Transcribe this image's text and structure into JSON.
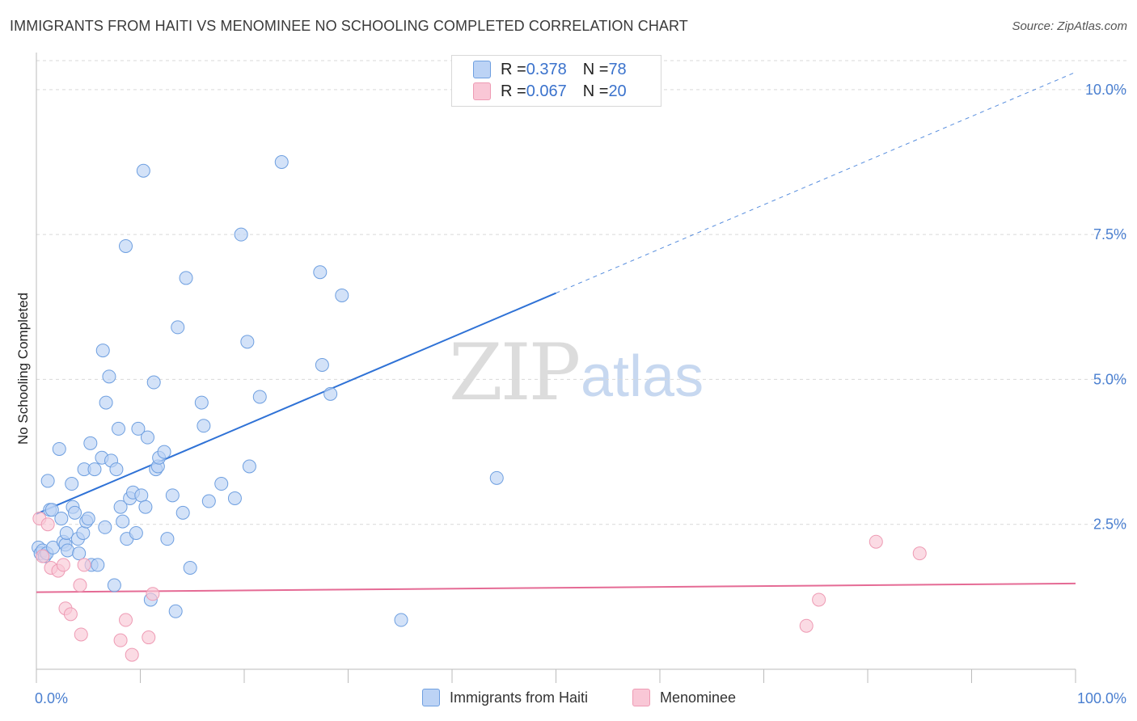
{
  "title": "IMMIGRANTS FROM HAITI VS MENOMINEE NO SCHOOLING COMPLETED CORRELATION CHART",
  "source": "Source: ZipAtlas.com",
  "watermark": {
    "zip": "ZIP",
    "atlas": "atlas"
  },
  "colors": {
    "blue_fill": "#bcd3f5",
    "blue_stroke": "#6e9fe0",
    "blue_line": "#2f72d6",
    "pink_fill": "#f9c7d6",
    "pink_stroke": "#ee9bb4",
    "pink_line": "#e56b95",
    "axis_text": "#4a7fd0",
    "grid": "#d9d9d9"
  },
  "legend": {
    "rows": [
      {
        "r_label": "R = ",
        "r_value": "0.378",
        "n_label": "N = ",
        "n_value": "78"
      },
      {
        "r_label": "R = ",
        "r_value": "0.067",
        "n_label": "N = ",
        "n_value": "20"
      }
    ]
  },
  "bottom_legend": [
    "Immigrants from Haiti",
    "Menominee"
  ],
  "chart_data": {
    "type": "scatter",
    "title": "IMMIGRANTS FROM HAITI VS MENOMINEE NO SCHOOLING COMPLETED CORRELATION CHART",
    "xlabel": "",
    "ylabel": "No Schooling Completed",
    "xlim": [
      0,
      100
    ],
    "ylim": [
      0,
      10.5
    ],
    "x_tick_labels": [
      "0.0%",
      "100.0%"
    ],
    "y_ticks": [
      2.5,
      5.0,
      7.5,
      10.0
    ],
    "y_tick_labels": [
      "2.5%",
      "5.0%",
      "7.5%",
      "10.0%"
    ],
    "grid": true,
    "series": [
      {
        "name": "Immigrants from Haiti",
        "color": "blue",
        "R": 0.378,
        "N": 78,
        "trend": {
          "x0": 0,
          "y0": 2.68,
          "x1": 100,
          "y1": 10.3,
          "solid_until": 50
        },
        "points": [
          [
            0.2,
            2.1
          ],
          [
            0.4,
            2.0
          ],
          [
            0.6,
            2.05
          ],
          [
            0.8,
            1.95
          ],
          [
            1.0,
            2.0
          ],
          [
            1.1,
            3.25
          ],
          [
            1.3,
            2.75
          ],
          [
            1.5,
            2.75
          ],
          [
            1.6,
            2.1
          ],
          [
            2.2,
            3.8
          ],
          [
            2.4,
            2.6
          ],
          [
            2.6,
            2.2
          ],
          [
            2.8,
            2.15
          ],
          [
            2.9,
            2.35
          ],
          [
            3.0,
            2.05
          ],
          [
            3.4,
            3.2
          ],
          [
            3.5,
            2.8
          ],
          [
            3.7,
            2.7
          ],
          [
            4.0,
            2.25
          ],
          [
            4.1,
            2.0
          ],
          [
            4.5,
            2.35
          ],
          [
            4.6,
            3.45
          ],
          [
            4.8,
            2.55
          ],
          [
            5.0,
            2.6
          ],
          [
            5.2,
            3.9
          ],
          [
            5.3,
            1.8
          ],
          [
            5.6,
            3.45
          ],
          [
            5.9,
            1.8
          ],
          [
            6.3,
            3.65
          ],
          [
            6.4,
            5.5
          ],
          [
            6.6,
            2.45
          ],
          [
            6.7,
            4.6
          ],
          [
            7.0,
            5.05
          ],
          [
            7.2,
            3.6
          ],
          [
            7.5,
            1.45
          ],
          [
            7.7,
            3.45
          ],
          [
            7.9,
            4.15
          ],
          [
            8.1,
            2.8
          ],
          [
            8.3,
            2.55
          ],
          [
            8.6,
            7.3
          ],
          [
            8.7,
            2.25
          ],
          [
            9.0,
            2.95
          ],
          [
            9.3,
            3.05
          ],
          [
            9.6,
            2.35
          ],
          [
            9.8,
            4.15
          ],
          [
            10.1,
            3.0
          ],
          [
            10.3,
            8.6
          ],
          [
            10.5,
            2.8
          ],
          [
            10.7,
            4.0
          ],
          [
            11.0,
            1.2
          ],
          [
            11.3,
            4.95
          ],
          [
            11.5,
            3.45
          ],
          [
            11.7,
            3.5
          ],
          [
            11.8,
            3.65
          ],
          [
            12.3,
            3.75
          ],
          [
            12.6,
            2.25
          ],
          [
            13.1,
            3.0
          ],
          [
            13.4,
            1.0
          ],
          [
            13.6,
            5.9
          ],
          [
            14.1,
            2.7
          ],
          [
            14.4,
            6.75
          ],
          [
            14.8,
            1.75
          ],
          [
            15.9,
            4.6
          ],
          [
            16.1,
            4.2
          ],
          [
            16.6,
            2.9
          ],
          [
            17.8,
            3.2
          ],
          [
            19.1,
            2.95
          ],
          [
            19.7,
            7.5
          ],
          [
            20.3,
            5.65
          ],
          [
            20.5,
            3.5
          ],
          [
            21.5,
            4.7
          ],
          [
            23.6,
            8.75
          ],
          [
            27.3,
            6.85
          ],
          [
            27.5,
            5.25
          ],
          [
            28.3,
            4.75
          ],
          [
            29.4,
            6.45
          ],
          [
            35.1,
            0.85
          ],
          [
            44.3,
            3.3
          ]
        ]
      },
      {
        "name": "Menominee",
        "color": "pink",
        "R": 0.067,
        "N": 20,
        "trend": {
          "x0": 0,
          "y0": 1.33,
          "x1": 100,
          "y1": 1.48,
          "solid_until": 100
        },
        "points": [
          [
            0.3,
            2.6
          ],
          [
            0.6,
            1.95
          ],
          [
            1.1,
            2.5
          ],
          [
            1.4,
            1.75
          ],
          [
            2.1,
            1.7
          ],
          [
            2.6,
            1.8
          ],
          [
            2.8,
            1.05
          ],
          [
            3.3,
            0.95
          ],
          [
            4.2,
            1.45
          ],
          [
            4.3,
            0.6
          ],
          [
            4.6,
            1.8
          ],
          [
            8.1,
            0.5
          ],
          [
            8.6,
            0.85
          ],
          [
            9.2,
            0.25
          ],
          [
            10.8,
            0.55
          ],
          [
            11.2,
            1.3
          ],
          [
            74.1,
            0.75
          ],
          [
            75.3,
            1.2
          ],
          [
            80.8,
            2.2
          ],
          [
            85.0,
            2.0
          ]
        ]
      }
    ]
  }
}
